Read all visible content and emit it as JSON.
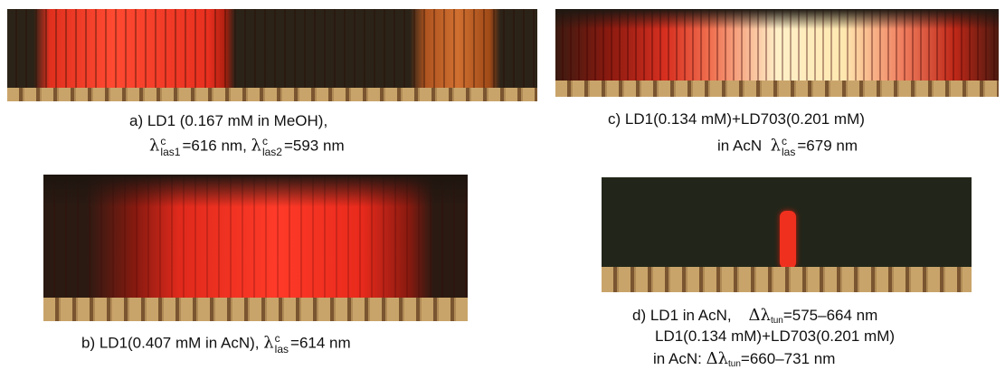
{
  "panels": {
    "a": {
      "line1": "a) LD1 (0.167 mM in MeOH),",
      "line2": [
        "λ",
        "c",
        "las1",
        "=616 nm,",
        "λ",
        "c",
        "las2",
        "=593 nm"
      ]
    },
    "b": {
      "line1": [
        "b) LD1(0.407 mM in AcN),",
        "λ",
        "c",
        "las",
        "=614 nm"
      ]
    },
    "c": {
      "line1": "c) LD1(0.134 mM)+LD703(0.201 mM)",
      "line2": [
        "in AcN",
        "λ",
        "c",
        "las",
        "=679 nm"
      ]
    },
    "d": {
      "line1": [
        "d) LD1 in AcN,",
        "Δλ",
        "tun",
        "=575–664 nm"
      ],
      "line2": "LD1(0.134 mM)+LD703(0.201 mM)",
      "line3": [
        "in AcN:",
        "Δλ",
        "tun",
        "=660–731 nm"
      ]
    }
  }
}
